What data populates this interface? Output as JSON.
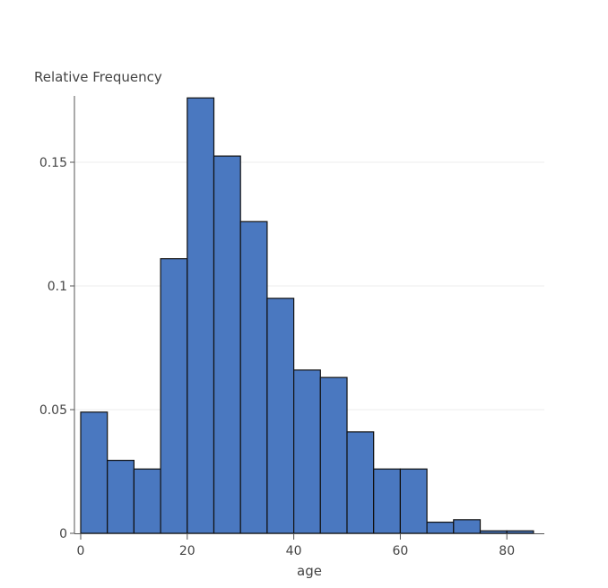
{
  "chart_data": {
    "type": "histogram",
    "title": "",
    "xlabel": "age",
    "ylabel": "Relative Frequency",
    "xlim": [
      0,
      85
    ],
    "ylim": [
      0,
      0.176
    ],
    "bin_width": 5,
    "bins": [
      {
        "start": 0,
        "end": 5,
        "value": 0.049
      },
      {
        "start": 5,
        "end": 10,
        "value": 0.0295
      },
      {
        "start": 10,
        "end": 15,
        "value": 0.026
      },
      {
        "start": 15,
        "end": 20,
        "value": 0.111
      },
      {
        "start": 20,
        "end": 25,
        "value": 0.176
      },
      {
        "start": 25,
        "end": 30,
        "value": 0.1525
      },
      {
        "start": 30,
        "end": 35,
        "value": 0.126
      },
      {
        "start": 35,
        "end": 40,
        "value": 0.095
      },
      {
        "start": 40,
        "end": 45,
        "value": 0.066
      },
      {
        "start": 45,
        "end": 50,
        "value": 0.063
      },
      {
        "start": 50,
        "end": 55,
        "value": 0.041
      },
      {
        "start": 55,
        "end": 60,
        "value": 0.026
      },
      {
        "start": 60,
        "end": 65,
        "value": 0.026
      },
      {
        "start": 65,
        "end": 70,
        "value": 0.0045
      },
      {
        "start": 70,
        "end": 75,
        "value": 0.0055
      },
      {
        "start": 75,
        "end": 80,
        "value": 0.001
      },
      {
        "start": 80,
        "end": 85,
        "value": 0.001
      }
    ],
    "x_ticks": [
      {
        "value": 0,
        "label": "0"
      },
      {
        "value": 20,
        "label": "20"
      },
      {
        "value": 40,
        "label": "40"
      },
      {
        "value": 60,
        "label": "60"
      },
      {
        "value": 80,
        "label": "80"
      }
    ],
    "y_ticks": [
      {
        "value": 0,
        "label": "0"
      },
      {
        "value": 0.05,
        "label": "0.05"
      },
      {
        "value": 0.1,
        "label": "0.1"
      },
      {
        "value": 0.15,
        "label": "0.15"
      }
    ],
    "grid": true,
    "colors": {
      "bar_fill": "#4a78c0",
      "bar_stroke": "#111111",
      "grid": "#ececec",
      "axis": "#555555",
      "text": "#444444"
    }
  }
}
